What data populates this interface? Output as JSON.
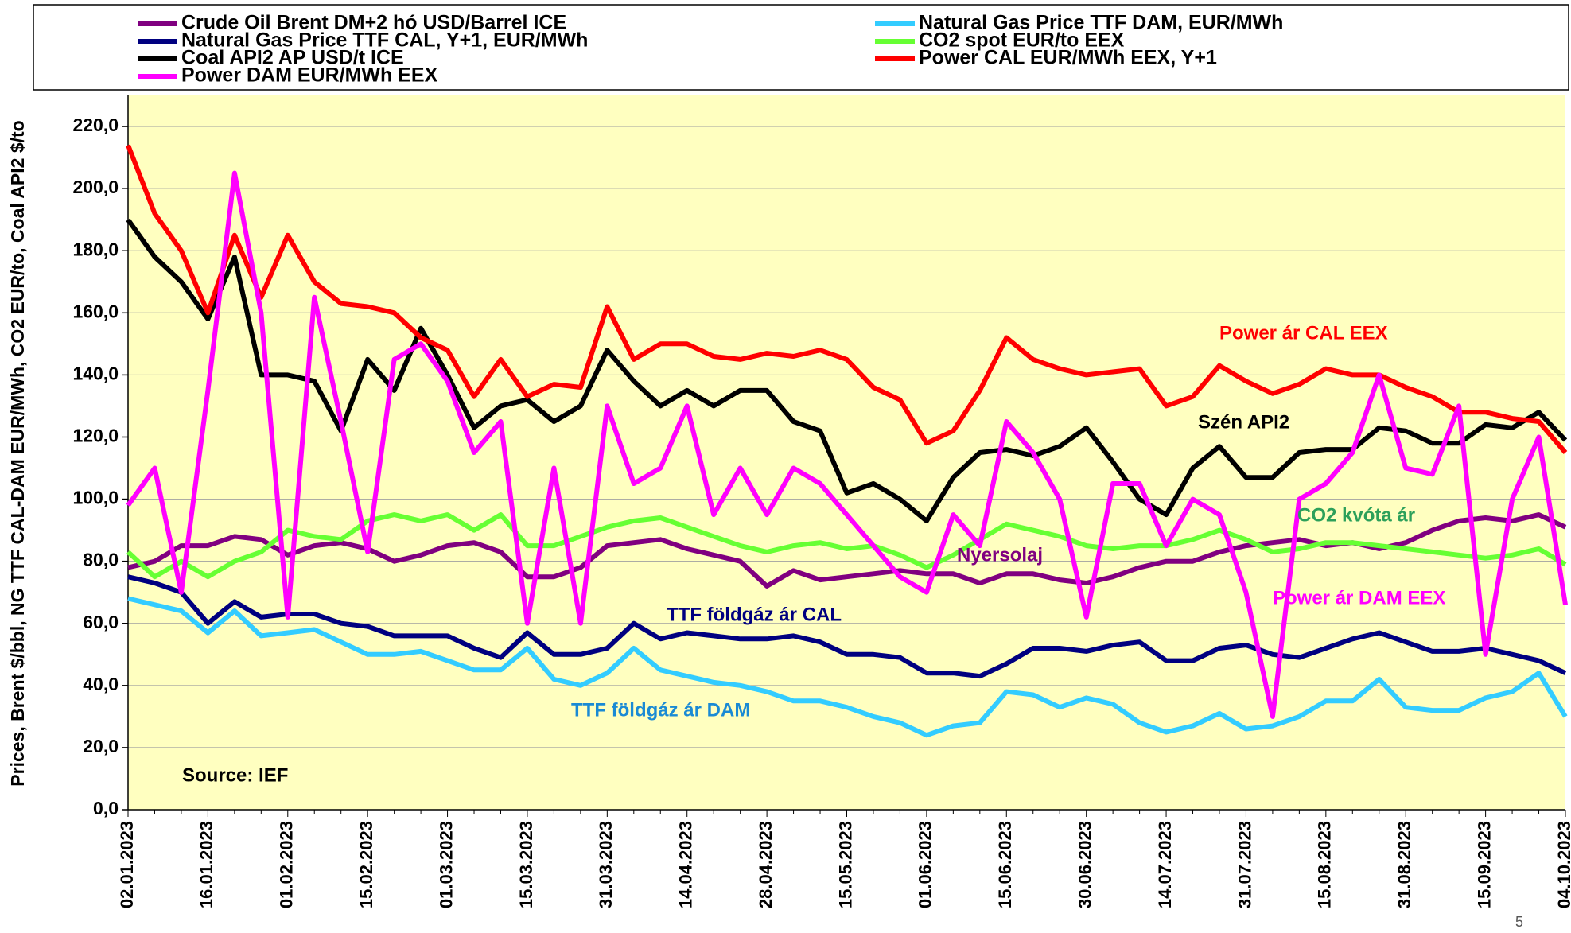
{
  "chart_data": {
    "type": "line",
    "y_axis_label": "Prices, Brent $/bbl, NG TTF CAL-DAM EUR/MWh, CO2 EUR/to, Coal API2 $/to",
    "page_number": "5",
    "categories": [
      "02.01.2023",
      null,
      null,
      "16.01.2023",
      null,
      null,
      "01.02.2023",
      null,
      null,
      "15.02.2023",
      null,
      null,
      "01.03.2023",
      null,
      null,
      "15.03.2023",
      null,
      null,
      "31.03.2023",
      null,
      null,
      "14.04.2023",
      null,
      null,
      "28.04.2023",
      null,
      null,
      "15.05.2023",
      null,
      null,
      "01.06.2023",
      null,
      null,
      "15.06.2023",
      null,
      null,
      "30.06.2023",
      null,
      null,
      "14.07.2023",
      null,
      null,
      "31.07.2023",
      null,
      null,
      "15.08.2023",
      null,
      null,
      "31.08.2023",
      null,
      null,
      "15.09.2023",
      null,
      null,
      "04.10.2023"
    ],
    "ylim": [
      0,
      230
    ],
    "yticks": [
      {
        "value": 0,
        "label": "0,0"
      },
      {
        "value": 20,
        "label": "20,0"
      },
      {
        "value": 40,
        "label": "40,0"
      },
      {
        "value": 60,
        "label": "60,0"
      },
      {
        "value": 80,
        "label": "80,0"
      },
      {
        "value": 100,
        "label": "100,0"
      },
      {
        "value": 120,
        "label": "120,0"
      },
      {
        "value": 140,
        "label": "140,0"
      },
      {
        "value": 160,
        "label": "160,0"
      },
      {
        "value": 180,
        "label": "180,0"
      },
      {
        "value": 200,
        "label": "200,0"
      },
      {
        "value": 220,
        "label": "220,0"
      }
    ],
    "grid": true,
    "background": "#ffffc0",
    "series": [
      {
        "name": "Crude Oil Brent DM+2 hó USD/Barrel ICE",
        "color": "#800080",
        "values": [
          78,
          80,
          85,
          85,
          88,
          87,
          82,
          85,
          86,
          84,
          80,
          82,
          85,
          86,
          83,
          75,
          75,
          78,
          85,
          86,
          87,
          84,
          82,
          80,
          72,
          77,
          74,
          75,
          76,
          77,
          76,
          76,
          73,
          76,
          76,
          74,
          73,
          75,
          78,
          80,
          80,
          83,
          85,
          86,
          87,
          85,
          86,
          84,
          86,
          90,
          93,
          94,
          93,
          95,
          91
        ]
      },
      {
        "name": "Natural Gas Price TTF DAM, EUR/MWh",
        "color": "#33ccff",
        "values": [
          68,
          66,
          64,
          57,
          64,
          56,
          57,
          58,
          54,
          50,
          50,
          51,
          48,
          45,
          45,
          52,
          42,
          40,
          44,
          52,
          45,
          43,
          41,
          40,
          38,
          35,
          35,
          33,
          30,
          28,
          24,
          27,
          28,
          38,
          37,
          33,
          36,
          34,
          28,
          25,
          27,
          31,
          26,
          27,
          30,
          35,
          35,
          42,
          33,
          32,
          32,
          36,
          38,
          44,
          30
        ]
      },
      {
        "name": "Natural Gas Price TTF CAL, Y+1, EUR/MWh",
        "color": "#000080",
        "values": [
          75,
          73,
          70,
          60,
          67,
          62,
          63,
          63,
          60,
          59,
          56,
          56,
          56,
          52,
          49,
          57,
          50,
          50,
          52,
          60,
          55,
          57,
          56,
          55,
          55,
          56,
          54,
          50,
          50,
          49,
          44,
          44,
          43,
          47,
          52,
          52,
          51,
          53,
          54,
          48,
          48,
          52,
          53,
          50,
          49,
          52,
          55,
          57,
          54,
          51,
          51,
          52,
          50,
          48,
          44
        ]
      },
      {
        "name": "CO2 spot EUR/to EEX",
        "color": "#66ff33",
        "values": [
          83,
          75,
          80,
          75,
          80,
          83,
          90,
          88,
          87,
          93,
          95,
          93,
          95,
          90,
          95,
          85,
          85,
          88,
          91,
          93,
          94,
          91,
          88,
          85,
          83,
          85,
          86,
          84,
          85,
          82,
          78,
          82,
          87,
          92,
          90,
          88,
          85,
          84,
          85,
          85,
          87,
          90,
          87,
          83,
          84,
          86,
          86,
          85,
          84,
          83,
          82,
          81,
          82,
          84,
          79
        ]
      },
      {
        "name": "Coal API2 AP USD/t ICE",
        "color": "#000000",
        "values": [
          190,
          178,
          170,
          158,
          178,
          140,
          140,
          138,
          122,
          145,
          135,
          155,
          140,
          123,
          130,
          132,
          125,
          130,
          148,
          138,
          130,
          135,
          130,
          135,
          135,
          125,
          122,
          102,
          105,
          100,
          93,
          107,
          115,
          116,
          114,
          117,
          123,
          112,
          100,
          95,
          110,
          117,
          107,
          107,
          115,
          116,
          116,
          123,
          122,
          118,
          118,
          124,
          123,
          128,
          119
        ]
      },
      {
        "name": "Power CAL EUR/MWh EEX, Y+1",
        "color": "#ff0000",
        "values": [
          214,
          192,
          180,
          160,
          185,
          165,
          185,
          170,
          163,
          162,
          160,
          152,
          148,
          133,
          145,
          133,
          137,
          136,
          162,
          145,
          150,
          150,
          146,
          145,
          147,
          146,
          148,
          145,
          136,
          132,
          118,
          122,
          135,
          152,
          145,
          142,
          140,
          141,
          142,
          130,
          133,
          143,
          138,
          134,
          137,
          142,
          140,
          140,
          136,
          133,
          128,
          128,
          126,
          125,
          115
        ]
      },
      {
        "name": "Power DAM EUR/MWh EEX",
        "color": "#ff00ff",
        "values": [
          98,
          110,
          70,
          135,
          205,
          160,
          62,
          165,
          125,
          83,
          145,
          150,
          138,
          115,
          125,
          60,
          110,
          60,
          130,
          105,
          110,
          130,
          95,
          110,
          95,
          110,
          105,
          95,
          85,
          75,
          70,
          95,
          85,
          125,
          115,
          100,
          62,
          105,
          105,
          85,
          100,
          95,
          70,
          30,
          100,
          105,
          115,
          140,
          110,
          108,
          130,
          50,
          100,
          120,
          66
        ]
      }
    ],
    "annotations": [
      {
        "text": "Power ár CAL EEX",
        "color": "#ff0000"
      },
      {
        "text": "Szén API2",
        "color": "#000000"
      },
      {
        "text": "CO2 kvóta ár",
        "color": "#2ca05a"
      },
      {
        "text": "Nyersolaj",
        "color": "#800080"
      },
      {
        "text": "Power ár DAM EEX",
        "color": "#ff00ff"
      },
      {
        "text": "TTF földgáz ár CAL",
        "color": "#000080"
      },
      {
        "text": "TTF földgáz ár DAM",
        "color": "#1a8ad4"
      },
      {
        "text": "Source:  IEF",
        "color": "#000000"
      }
    ]
  }
}
